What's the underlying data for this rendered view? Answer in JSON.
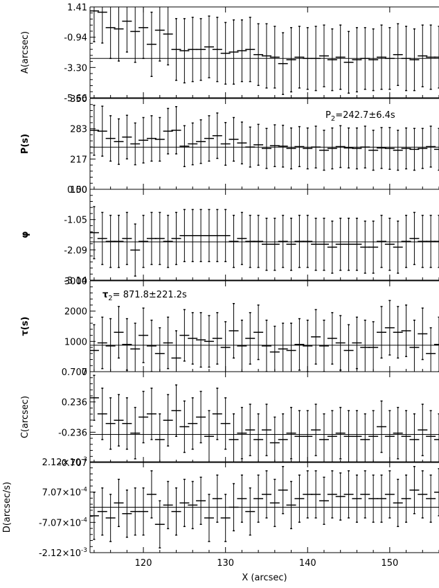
{
  "chart_data": [
    {
      "type": "scatter",
      "ylabel": "A(arcsec)",
      "yticks": [
        "1.41",
        "-0.94",
        "-3.30",
        "-5.66"
      ],
      "ylim": [
        -5.66,
        1.41
      ],
      "fit_y": -2.6,
      "annotation": "",
      "series": [
        {
          "x": [
            114,
            115,
            116,
            117,
            118,
            119,
            120,
            121,
            122,
            123,
            124,
            125,
            126,
            127,
            128,
            129,
            130,
            131,
            132,
            133,
            134,
            135,
            136,
            137,
            138,
            139,
            140,
            141,
            142,
            143,
            144,
            145,
            146,
            147,
            148,
            149,
            150,
            151,
            152,
            153,
            154,
            155,
            156
          ],
          "y": [
            1.1,
            1.0,
            -0.2,
            -0.3,
            0.3,
            -0.5,
            -0.2,
            -1.5,
            -0.4,
            -0.7,
            -1.9,
            -2.0,
            -1.9,
            -1.9,
            -1.7,
            -1.9,
            -2.2,
            -2.1,
            -2.0,
            -1.9,
            -2.3,
            -2.4,
            -2.5,
            -3.0,
            -2.7,
            -2.5,
            -2.6,
            -2.6,
            -2.4,
            -2.7,
            -2.5,
            -2.9,
            -2.7,
            -2.6,
            -2.7,
            -2.5,
            -2.6,
            -2.3,
            -2.6,
            -2.7,
            -2.4,
            -2.5,
            -2.5
          ],
          "err": [
            2.4,
            2.4,
            2.4,
            2.5,
            2.4,
            2.4,
            2.4,
            2.5,
            2.4,
            2.4,
            2.4,
            2.5,
            2.5,
            2.4,
            2.4,
            2.5,
            2.4,
            2.5,
            2.4,
            2.5,
            2.4,
            2.5,
            2.4,
            2.4,
            2.5,
            2.4,
            2.4,
            2.5,
            2.4,
            2.4,
            2.5,
            2.4,
            2.5,
            2.4,
            2.4,
            2.5,
            2.4,
            2.4,
            2.5,
            2.4,
            2.4,
            2.5,
            2.4
          ]
        }
      ]
    },
    {
      "type": "scatter",
      "ylabel": "P(s)",
      "yticks": [
        "350",
        "283",
        "217",
        "150"
      ],
      "ylim": [
        150,
        350
      ],
      "fit_y": 242.7,
      "annotation_main": "P",
      "annotation_sub": "2",
      "annotation_rest": "=242.7±6.4s",
      "series": [
        {
          "x": [
            114,
            115,
            116,
            117,
            118,
            119,
            120,
            121,
            122,
            123,
            124,
            125,
            126,
            127,
            128,
            129,
            130,
            131,
            132,
            133,
            134,
            135,
            136,
            137,
            138,
            139,
            140,
            141,
            142,
            143,
            144,
            145,
            146,
            147,
            148,
            149,
            150,
            151,
            152,
            153,
            154,
            155,
            156
          ],
          "y": [
            280,
            278,
            262,
            255,
            265,
            250,
            258,
            262,
            260,
            278,
            280,
            245,
            250,
            255,
            262,
            268,
            250,
            260,
            252,
            243,
            248,
            240,
            246,
            245,
            240,
            244,
            240,
            243,
            236,
            240,
            244,
            241,
            240,
            243,
            236,
            241,
            240,
            236,
            240,
            238,
            240,
            244,
            238
          ],
          "err": [
            55,
            55,
            50,
            50,
            48,
            46,
            50,
            50,
            48,
            50,
            52,
            45,
            46,
            48,
            50,
            50,
            47,
            48,
            46,
            44,
            45,
            44,
            46,
            46,
            45,
            44,
            45,
            46,
            44,
            45,
            46,
            44,
            45,
            46,
            44,
            45,
            46,
            44,
            45,
            46,
            44,
            45,
            46
          ]
        }
      ]
    },
    {
      "type": "scatter",
      "ylabel": "φ",
      "yticks": [
        "0.00",
        "-1.05",
        "-2.09",
        "-3.14"
      ],
      "ylim": [
        -3.14,
        0.0
      ],
      "fit_y": -1.82,
      "annotation": "",
      "series": [
        {
          "x": [
            114,
            115,
            116,
            117,
            118,
            119,
            120,
            121,
            122,
            123,
            124,
            125,
            126,
            127,
            128,
            129,
            130,
            131,
            132,
            133,
            134,
            135,
            136,
            137,
            138,
            139,
            140,
            141,
            142,
            143,
            144,
            145,
            146,
            147,
            148,
            149,
            150,
            151,
            152,
            153,
            154,
            155,
            156
          ],
          "y": [
            -1.5,
            -1.7,
            -1.8,
            -1.8,
            -1.7,
            -2.1,
            -1.8,
            -1.7,
            -1.7,
            -1.8,
            -1.7,
            -1.6,
            -1.6,
            -1.6,
            -1.6,
            -1.6,
            -1.6,
            -1.8,
            -1.7,
            -1.8,
            -1.8,
            -1.9,
            -1.9,
            -1.8,
            -1.9,
            -1.8,
            -1.8,
            -1.9,
            -1.9,
            -2.0,
            -1.9,
            -1.9,
            -1.9,
            -2.0,
            -2.0,
            -1.8,
            -1.9,
            -2.0,
            -1.8,
            -1.7,
            -1.8,
            -1.8,
            -1.8
          ],
          "err": [
            0.9,
            0.9,
            0.9,
            0.9,
            0.9,
            0.9,
            0.9,
            0.9,
            0.9,
            0.9,
            0.9,
            0.9,
            0.9,
            0.9,
            0.9,
            0.9,
            0.9,
            0.9,
            0.9,
            0.9,
            0.9,
            0.9,
            0.9,
            0.9,
            0.9,
            0.9,
            0.9,
            0.9,
            0.9,
            0.9,
            0.9,
            0.9,
            0.9,
            0.9,
            0.9,
            0.9,
            0.9,
            0.9,
            0.9,
            0.9,
            0.9,
            0.9,
            0.9
          ]
        }
      ]
    },
    {
      "type": "scatter",
      "ylabel": "τ(s)",
      "yticks": [
        "3000",
        "2000",
        "1000",
        "0"
      ],
      "yvals": [
        3000,
        2000,
        1000,
        0
      ],
      "ylim": [
        0,
        3000
      ],
      "fit_y": 871.8,
      "annotation_main": "τ",
      "annotation_sub": "2",
      "annotation_rest": "= 871.8±221.2s",
      "series": [
        {
          "x": [
            114,
            115,
            116,
            117,
            118,
            119,
            120,
            121,
            122,
            123,
            124,
            125,
            126,
            127,
            128,
            129,
            130,
            131,
            132,
            133,
            134,
            135,
            136,
            137,
            138,
            139,
            140,
            141,
            142,
            143,
            144,
            145,
            146,
            147,
            148,
            149,
            150,
            151,
            152,
            153,
            154,
            155,
            156
          ],
          "y": [
            700,
            950,
            850,
            1300,
            900,
            750,
            1200,
            850,
            600,
            950,
            450,
            1200,
            1100,
            1050,
            1000,
            1100,
            800,
            1350,
            850,
            1100,
            1300,
            850,
            650,
            750,
            700,
            900,
            850,
            1150,
            850,
            1100,
            950,
            700,
            950,
            800,
            800,
            1300,
            1450,
            1300,
            1350,
            800,
            1250,
            600,
            900
          ],
          "err": [
            850,
            850,
            900,
            850,
            850,
            850,
            900,
            850,
            850,
            850,
            900,
            850,
            850,
            900,
            850,
            850,
            850,
            900,
            850,
            850,
            900,
            850,
            850,
            850,
            900,
            850,
            850,
            900,
            850,
            850,
            900,
            850,
            850,
            900,
            850,
            850,
            900,
            850,
            850,
            900,
            850,
            850,
            900
          ]
        }
      ]
    },
    {
      "type": "scatter",
      "ylabel": "C(arcsec)",
      "yticks": [
        "0.707",
        "0.236",
        "-0.236",
        "-0.707"
      ],
      "ylim": [
        -0.707,
        0.707
      ],
      "fit_y": -0.27,
      "annotation": "",
      "series": [
        {
          "x": [
            114,
            115,
            116,
            117,
            118,
            119,
            120,
            121,
            122,
            123,
            124,
            125,
            126,
            127,
            128,
            129,
            130,
            131,
            132,
            133,
            134,
            135,
            136,
            137,
            138,
            139,
            140,
            141,
            142,
            143,
            144,
            145,
            146,
            147,
            148,
            149,
            150,
            151,
            152,
            153,
            154,
            155,
            156
          ],
          "y": [
            0.3,
            0.05,
            -0.1,
            -0.05,
            -0.1,
            -0.25,
            0.0,
            0.05,
            -0.35,
            -0.05,
            0.1,
            -0.15,
            -0.1,
            0.0,
            -0.3,
            0.05,
            -0.1,
            -0.35,
            -0.25,
            -0.2,
            -0.35,
            -0.2,
            -0.4,
            -0.35,
            -0.25,
            -0.3,
            -0.3,
            -0.2,
            -0.35,
            -0.3,
            -0.25,
            -0.3,
            -0.3,
            -0.35,
            -0.3,
            -0.15,
            -0.3,
            -0.25,
            -0.3,
            -0.35,
            -0.2,
            -0.3,
            -0.35
          ],
          "err": [
            0.35,
            0.4,
            0.4,
            0.4,
            0.4,
            0.4,
            0.4,
            0.4,
            0.4,
            0.4,
            0.4,
            0.4,
            0.4,
            0.4,
            0.4,
            0.4,
            0.4,
            0.4,
            0.4,
            0.4,
            0.4,
            0.4,
            0.4,
            0.4,
            0.4,
            0.4,
            0.4,
            0.4,
            0.4,
            0.4,
            0.4,
            0.4,
            0.4,
            0.4,
            0.4,
            0.4,
            0.4,
            0.4,
            0.4,
            0.4,
            0.4,
            0.4,
            0.4
          ]
        }
      ]
    },
    {
      "type": "scatter",
      "ylabel": "D(arcsec/s)",
      "yticks_main": [
        "2.12×10",
        "7.07×10",
        "-7.07×10",
        "-2.12×10"
      ],
      "yticks_exp": [
        "-3",
        "-4",
        "-4",
        "-3"
      ],
      "ylim": [
        -0.00212,
        0.00212
      ],
      "fit_y": 0.0,
      "annotation": "",
      "series": [
        {
          "x": [
            114,
            115,
            116,
            117,
            118,
            119,
            120,
            121,
            122,
            123,
            124,
            125,
            126,
            127,
            128,
            129,
            130,
            131,
            132,
            133,
            134,
            135,
            136,
            137,
            138,
            139,
            140,
            141,
            142,
            143,
            144,
            145,
            146,
            147,
            148,
            149,
            150,
            151,
            152,
            153,
            154,
            155,
            156
          ],
          "y": [
            -0.0004,
            -0.0002,
            -0.0005,
            0.0002,
            -0.0003,
            -0.0002,
            -0.0002,
            0.0006,
            -0.0008,
            0.0001,
            -0.0002,
            0.0002,
            0.0001,
            0.0003,
            -0.0005,
            0.0004,
            -0.0005,
            0.0,
            0.0004,
            -0.0002,
            0.0004,
            0.0006,
            0.0002,
            0.0008,
            0.0001,
            0.0004,
            0.0006,
            0.0006,
            0.0003,
            0.0006,
            0.0005,
            0.0006,
            0.0004,
            0.0006,
            0.0004,
            0.0004,
            0.0006,
            0.0002,
            0.0004,
            0.0008,
            0.0006,
            0.0004,
            0.0007
          ],
          "err": [
            0.0011,
            0.0011,
            0.0011,
            0.0011,
            0.0011,
            0.0011,
            0.0011,
            0.0011,
            0.0011,
            0.0011,
            0.0011,
            0.0011,
            0.0011,
            0.0011,
            0.0011,
            0.0011,
            0.0011,
            0.0011,
            0.0011,
            0.0011,
            0.0011,
            0.0011,
            0.0011,
            0.0011,
            0.0011,
            0.0011,
            0.0011,
            0.0011,
            0.0011,
            0.0011,
            0.0011,
            0.0011,
            0.0011,
            0.0011,
            0.0011,
            0.0011,
            0.0011,
            0.0011,
            0.0011,
            0.0011,
            0.0011,
            0.0011,
            0.0011
          ]
        }
      ]
    }
  ],
  "x_axis": {
    "label": "X (arcsec)",
    "ticks": [
      "120",
      "130",
      "140",
      "150"
    ],
    "tick_values": [
      120,
      130,
      140,
      150
    ],
    "xlim": [
      113.5,
      156
    ]
  }
}
